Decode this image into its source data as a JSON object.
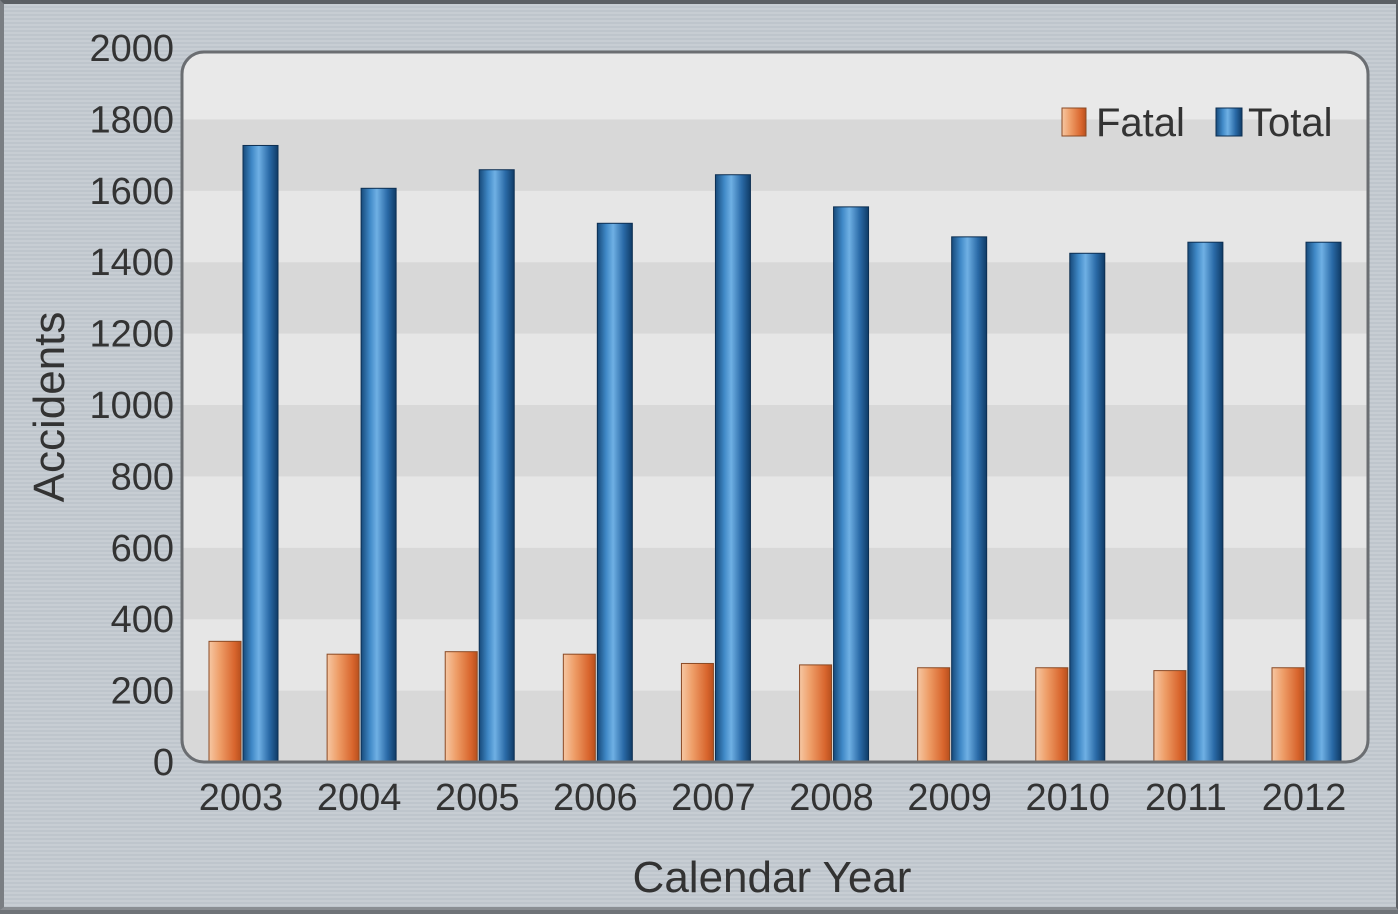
{
  "chart_data": {
    "type": "bar",
    "categories": [
      "2003",
      "2004",
      "2005",
      "2006",
      "2007",
      "2008",
      "2009",
      "2010",
      "2011",
      "2012"
    ],
    "series": [
      {
        "name": "Fatal",
        "values": [
          338,
          302,
          309,
          302,
          276,
          272,
          264,
          264,
          256,
          264
        ]
      },
      {
        "name": "Total",
        "values": [
          1727,
          1607,
          1659,
          1509,
          1645,
          1555,
          1471,
          1425,
          1456,
          1456
        ]
      }
    ],
    "xlabel": "Calendar Year",
    "ylabel": "Accidents",
    "ylim": [
      0,
      2000
    ],
    "yticks": [
      "0",
      "200",
      "400",
      "600",
      "800",
      "1000",
      "1200",
      "1400",
      "1600",
      "1800",
      "2000"
    ],
    "legend_position": "top-right",
    "grid": "alternating horizontal bands",
    "colors": {
      "Fatal": "#e07a43",
      "Total": "#1e5c94"
    }
  }
}
